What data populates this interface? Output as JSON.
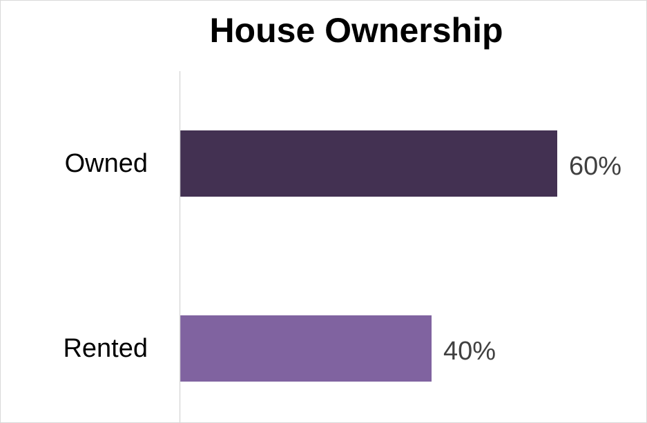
{
  "chart_data": {
    "type": "bar",
    "orientation": "horizontal",
    "title": "House Ownership",
    "categories": [
      "Owned",
      "Rented"
    ],
    "values": [
      60,
      40
    ],
    "value_labels": [
      "60%",
      "40%"
    ],
    "colors": [
      "#433152",
      "#8063a0"
    ],
    "xlim": [
      0,
      100
    ],
    "xlabel": "",
    "ylabel": "",
    "grid": false,
    "legend": "none"
  }
}
